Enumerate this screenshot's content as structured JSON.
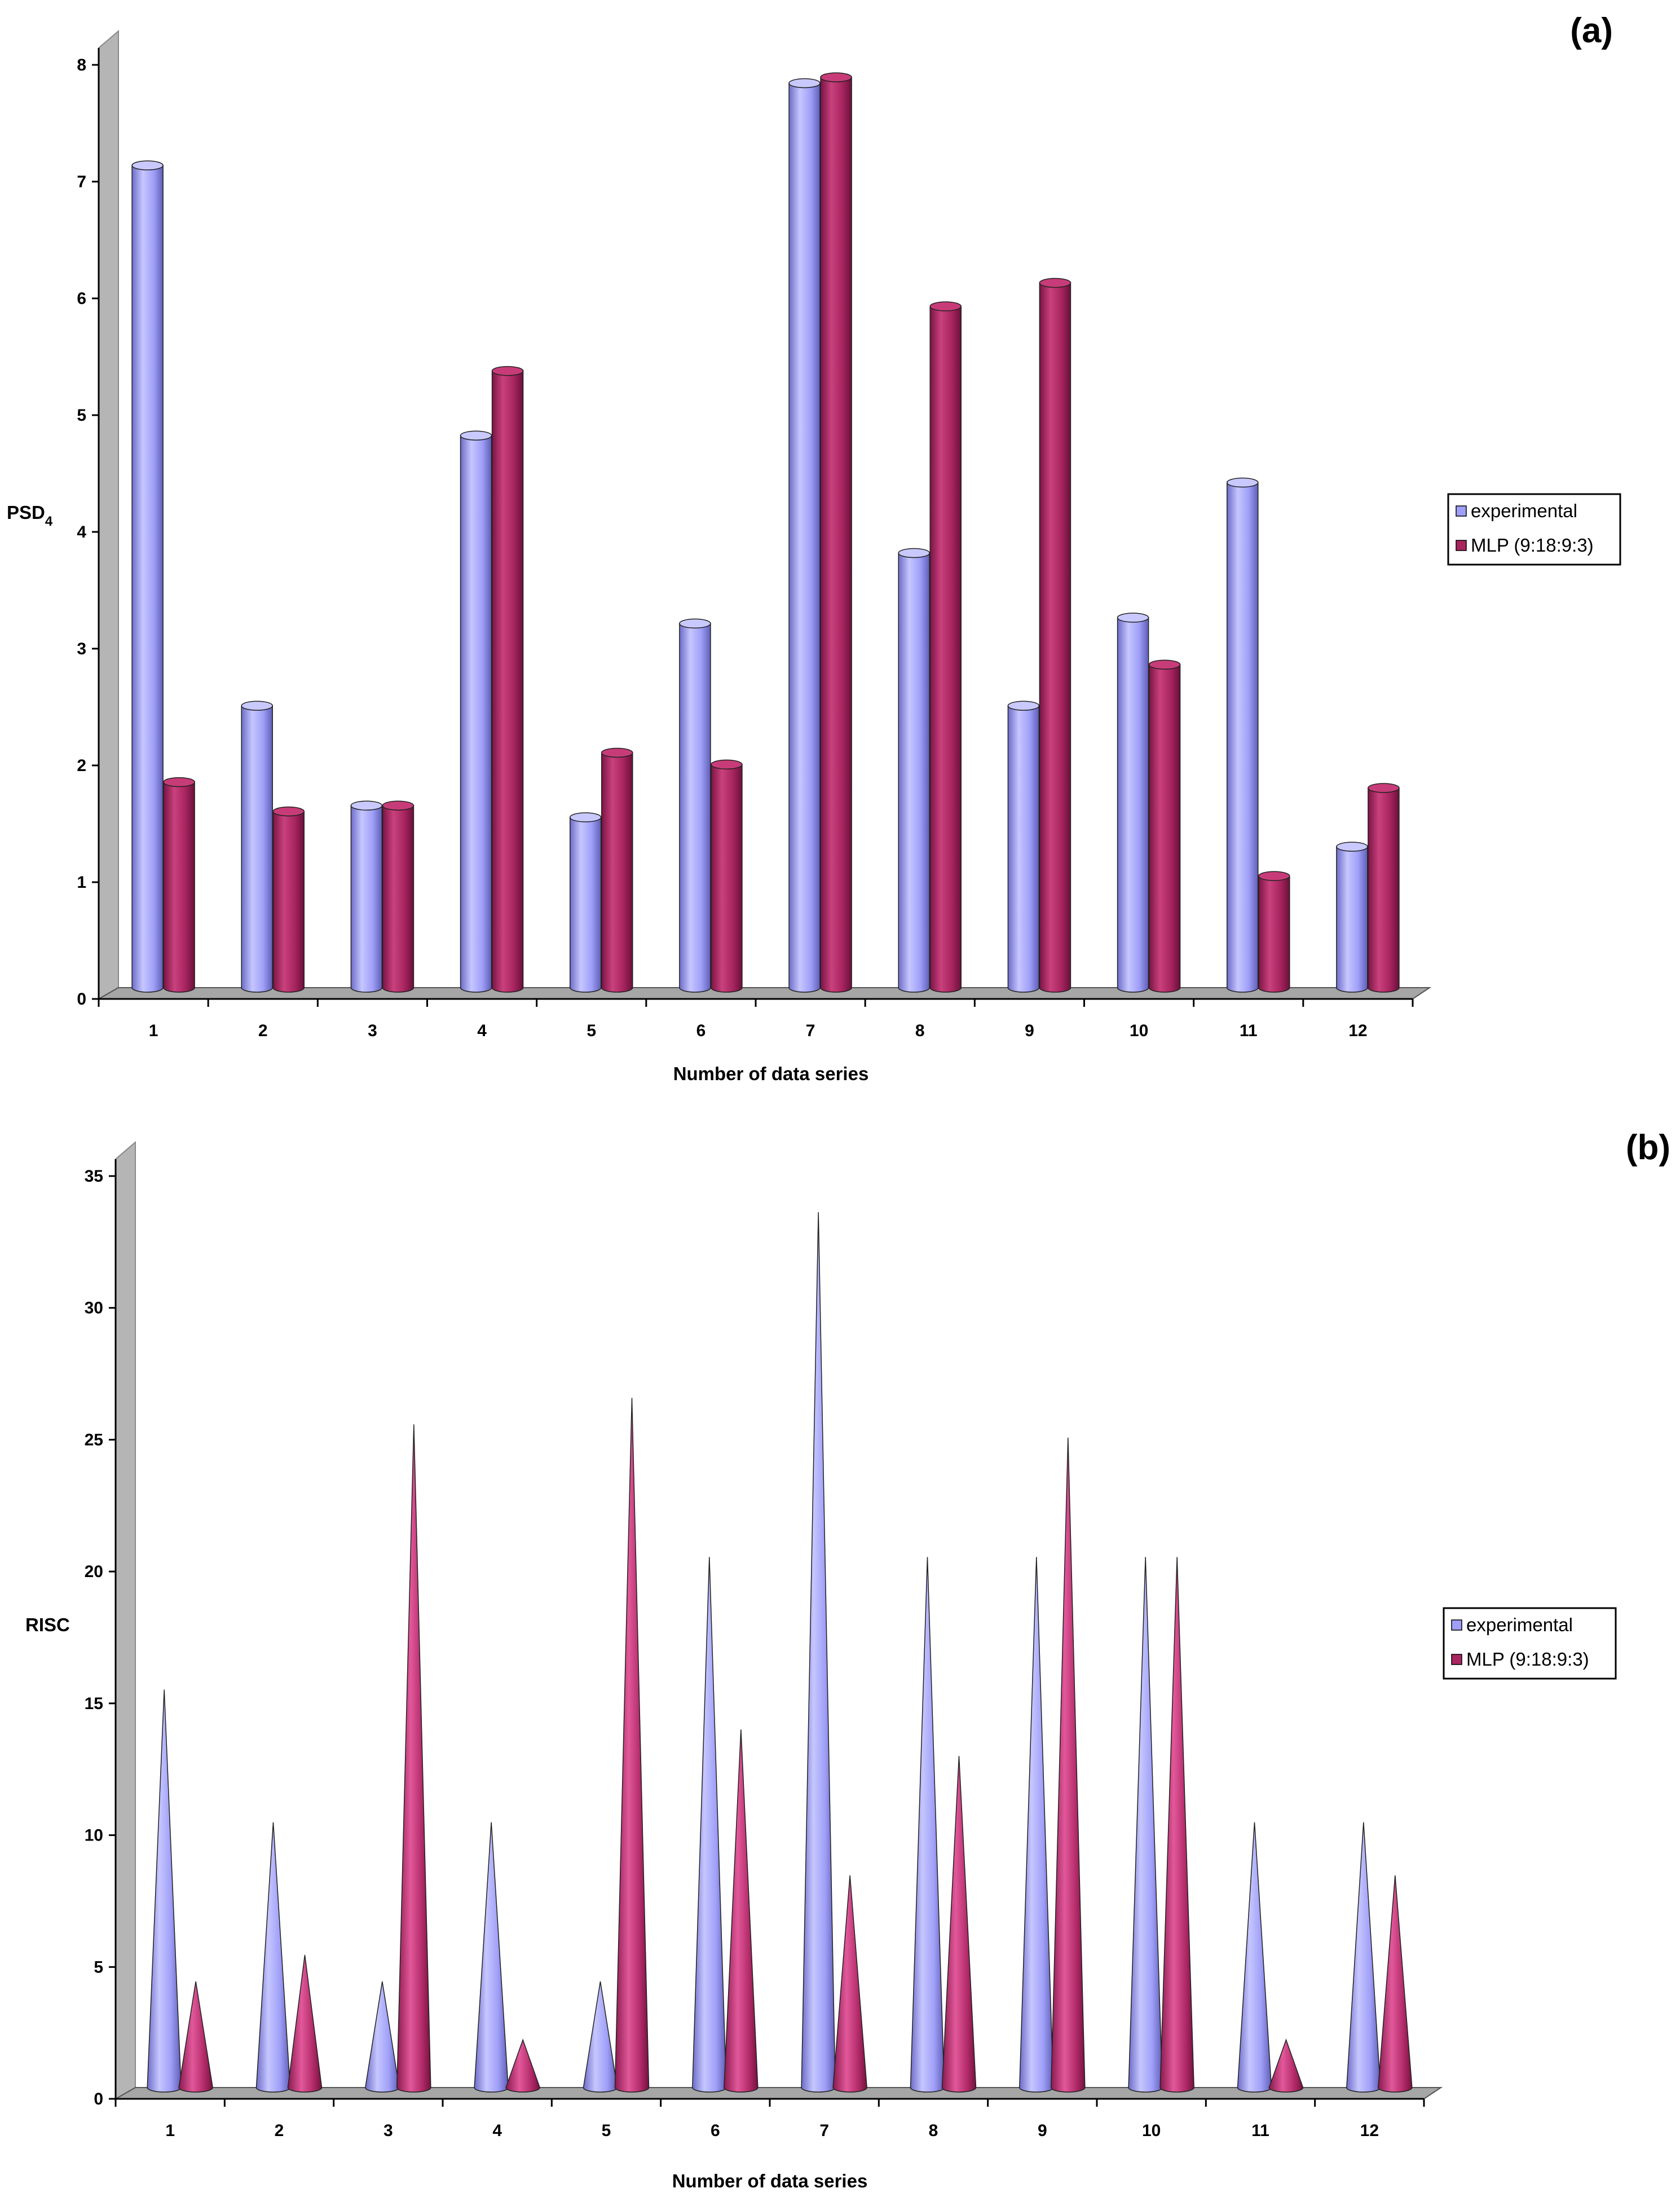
{
  "colors": {
    "experimental": "#9f9ff8",
    "mlp": "#a82560",
    "wall": "#b5b5b5",
    "floor": "#a6a6a6"
  },
  "chart_data": [
    {
      "type": "bar",
      "panel_label": "(a)",
      "categories": [
        "1",
        "2",
        "3",
        "4",
        "5",
        "6",
        "7",
        "8",
        "9",
        "10",
        "11",
        "12"
      ],
      "xlabel": "Number of data series",
      "ylabel": "PSD",
      "ylabel_subscript": "4",
      "ylim": [
        0,
        8
      ],
      "yticks": [
        "0",
        "1",
        "2",
        "3",
        "4",
        "5",
        "6",
        "7",
        "8"
      ],
      "legend_position": "right",
      "grid": false,
      "series": [
        {
          "name": "experimental",
          "values": [
            7.0,
            2.4,
            1.55,
            4.7,
            1.45,
            3.1,
            7.7,
            3.7,
            2.4,
            3.15,
            4.3,
            1.2
          ]
        },
        {
          "name": "MLP (9:18:9:3)",
          "values": [
            1.75,
            1.5,
            1.55,
            5.25,
            2.0,
            1.9,
            7.75,
            5.8,
            6.0,
            2.75,
            0.95,
            1.7
          ]
        }
      ]
    },
    {
      "type": "bar",
      "panel_label": "(b)",
      "categories": [
        "1",
        "2",
        "3",
        "4",
        "5",
        "6",
        "7",
        "8",
        "9",
        "10",
        "11",
        "12"
      ],
      "xlabel": "Number of data series",
      "ylabel": "RISC",
      "ylim": [
        0,
        35
      ],
      "yticks": [
        "0",
        "5",
        "10",
        "15",
        "20",
        "25",
        "30",
        "35"
      ],
      "legend_position": "right",
      "grid": false,
      "series": [
        {
          "name": "experimental",
          "values": [
            15,
            10,
            4,
            10,
            4,
            20,
            33,
            20,
            20,
            20,
            10,
            10
          ]
        },
        {
          "name": "MLP (9:18:9:3)",
          "values": [
            4,
            5,
            25,
            1.8,
            26,
            13.5,
            8,
            12.5,
            24.5,
            20,
            1.8,
            8
          ]
        }
      ]
    }
  ]
}
